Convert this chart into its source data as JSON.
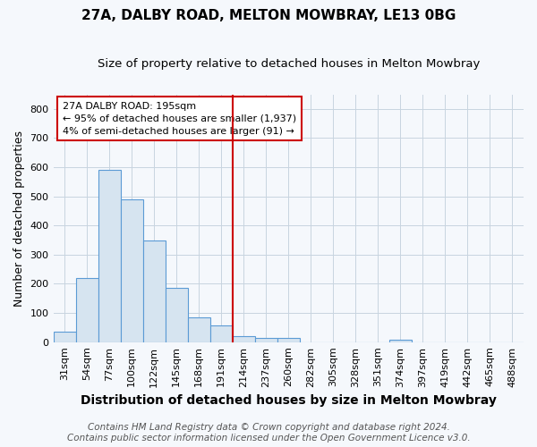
{
  "title": "27A, DALBY ROAD, MELTON MOWBRAY, LE13 0BG",
  "subtitle": "Size of property relative to detached houses in Melton Mowbray",
  "xlabel": "Distribution of detached houses by size in Melton Mowbray",
  "ylabel": "Number of detached properties",
  "footer_line1": "Contains HM Land Registry data © Crown copyright and database right 2024.",
  "footer_line2": "Contains public sector information licensed under the Open Government Licence v3.0.",
  "categories": [
    "31sqm",
    "54sqm",
    "77sqm",
    "100sqm",
    "122sqm",
    "145sqm",
    "168sqm",
    "191sqm",
    "214sqm",
    "237sqm",
    "260sqm",
    "282sqm",
    "305sqm",
    "328sqm",
    "351sqm",
    "374sqm",
    "397sqm",
    "419sqm",
    "442sqm",
    "465sqm",
    "488sqm"
  ],
  "values": [
    35,
    220,
    590,
    490,
    350,
    185,
    85,
    57,
    20,
    15,
    15,
    0,
    0,
    0,
    0,
    8,
    0,
    0,
    0,
    0,
    0
  ],
  "bar_color": "#d6e4f0",
  "bar_edge_color": "#5b9bd5",
  "vline_x_index": 7,
  "vline_color": "#cc0000",
  "annotation_text": "27A DALBY ROAD: 195sqm\n← 95% of detached houses are smaller (1,937)\n4% of semi-detached houses are larger (91) →",
  "annotation_box_color": "#ffffff",
  "annotation_box_edge": "#cc0000",
  "ylim": [
    0,
    850
  ],
  "yticks": [
    0,
    100,
    200,
    300,
    400,
    500,
    600,
    700,
    800
  ],
  "background_color": "#f5f8fc",
  "plot_bg_color": "#f5f8fc",
  "title_fontsize": 11,
  "subtitle_fontsize": 9.5,
  "xlabel_fontsize": 10,
  "ylabel_fontsize": 9,
  "tick_fontsize": 8,
  "footer_fontsize": 7.5
}
